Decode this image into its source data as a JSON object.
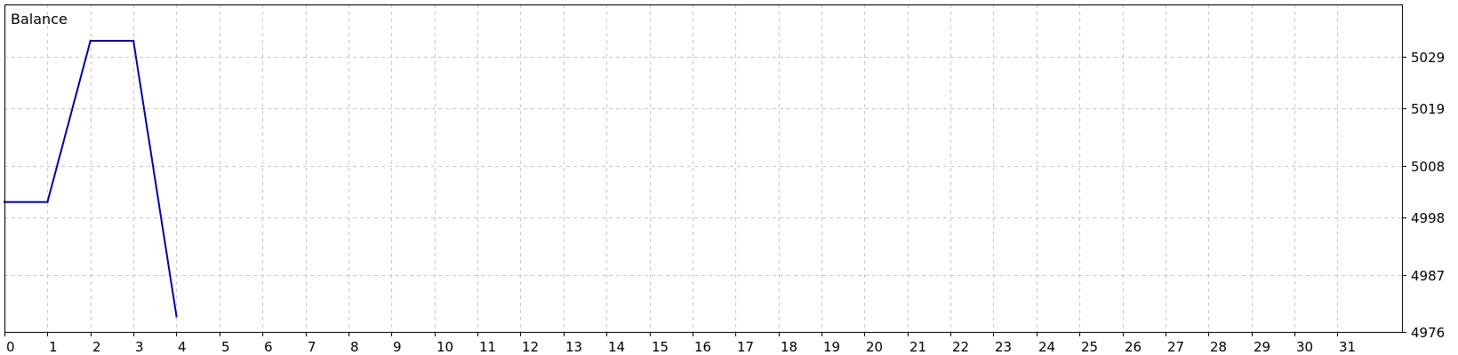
{
  "chart_data": {
    "type": "line",
    "title": "Balance",
    "xlabel": "",
    "ylabel": "",
    "x_ticks": [
      0,
      1,
      2,
      3,
      4,
      5,
      6,
      7,
      8,
      9,
      10,
      11,
      12,
      13,
      14,
      15,
      16,
      17,
      18,
      19,
      20,
      21,
      22,
      23,
      24,
      25,
      26,
      27,
      28,
      29,
      30,
      31
    ],
    "y_ticks": [
      4976,
      4987,
      4998,
      5008,
      5019,
      5029
    ],
    "xlim": [
      0,
      32.5
    ],
    "ylim": [
      4976,
      5039
    ],
    "grid": true,
    "y_axis_position": "right",
    "series": [
      {
        "x": [
          0,
          1,
          2,
          3,
          4
        ],
        "y": [
          5001,
          5001,
          5032,
          5032,
          4979
        ]
      }
    ],
    "colors": {
      "line": "#0000a0",
      "grid": "#c8c8c8",
      "frame": "#000000",
      "background": "#ffffff"
    }
  }
}
